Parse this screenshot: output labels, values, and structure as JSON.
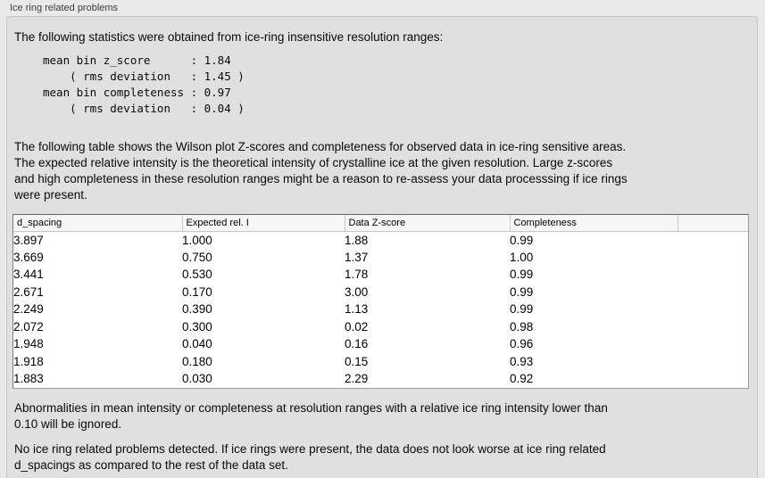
{
  "panel": {
    "title": "Ice ring related problems"
  },
  "sections": {
    "intro": "The following statistics were obtained from ice-ring insensitive resolution ranges:",
    "stats_block": "mean bin z_score      : 1.84\n    ( rms deviation   : 1.45 )\nmean bin completeness : 0.97\n    ( rms deviation   : 0.04 )",
    "table_intro": "The following table shows the Wilson plot Z-scores and completeness for observed data in ice-ring sensitive areas.\nThe expected relative intensity is the theoretical intensity of crystalline ice at the given resolution. Large z-scores\nand high completeness in these resolution ranges might be a reason to re-assess your data processsing if ice rings\nwere present.",
    "note_ignore": "Abnormalities in mean intensity or completeness at resolution ranges with a relative ice ring intensity lower than\n0.10 will be ignored.",
    "conclusion": "No ice ring related problems detected. If ice rings were present, the data does not look worse at ice ring related\nd_spacings as compared to the rest of the data set."
  },
  "table": {
    "headers": [
      "d_spacing",
      "Expected rel. I",
      "Data Z-score",
      "Completeness",
      ""
    ],
    "rows": [
      [
        "3.897",
        "1.000",
        "1.88",
        "0.99"
      ],
      [
        "3.669",
        "0.750",
        "1.37",
        "1.00"
      ],
      [
        "3.441",
        "0.530",
        "1.78",
        "0.99"
      ],
      [
        "2.671",
        "0.170",
        "3.00",
        "0.99"
      ],
      [
        "2.249",
        "0.390",
        "1.13",
        "0.99"
      ],
      [
        "2.072",
        "0.300",
        "0.02",
        "0.98"
      ],
      [
        "1.948",
        "0.040",
        "0.16",
        "0.96"
      ],
      [
        "1.918",
        "0.180",
        "0.15",
        "0.93"
      ],
      [
        "1.883",
        "0.030",
        "2.29",
        "0.92"
      ]
    ]
  },
  "colors": {
    "window_bg": "#e9e9e9",
    "panel_bg": "#e0e0e0",
    "panel_border": "#c5c5c5",
    "table_border": "#7d7d7d",
    "table_header_bg": "#f6f6f6",
    "header_separator": "#c9c9c9",
    "text": "#0a0a0a"
  }
}
